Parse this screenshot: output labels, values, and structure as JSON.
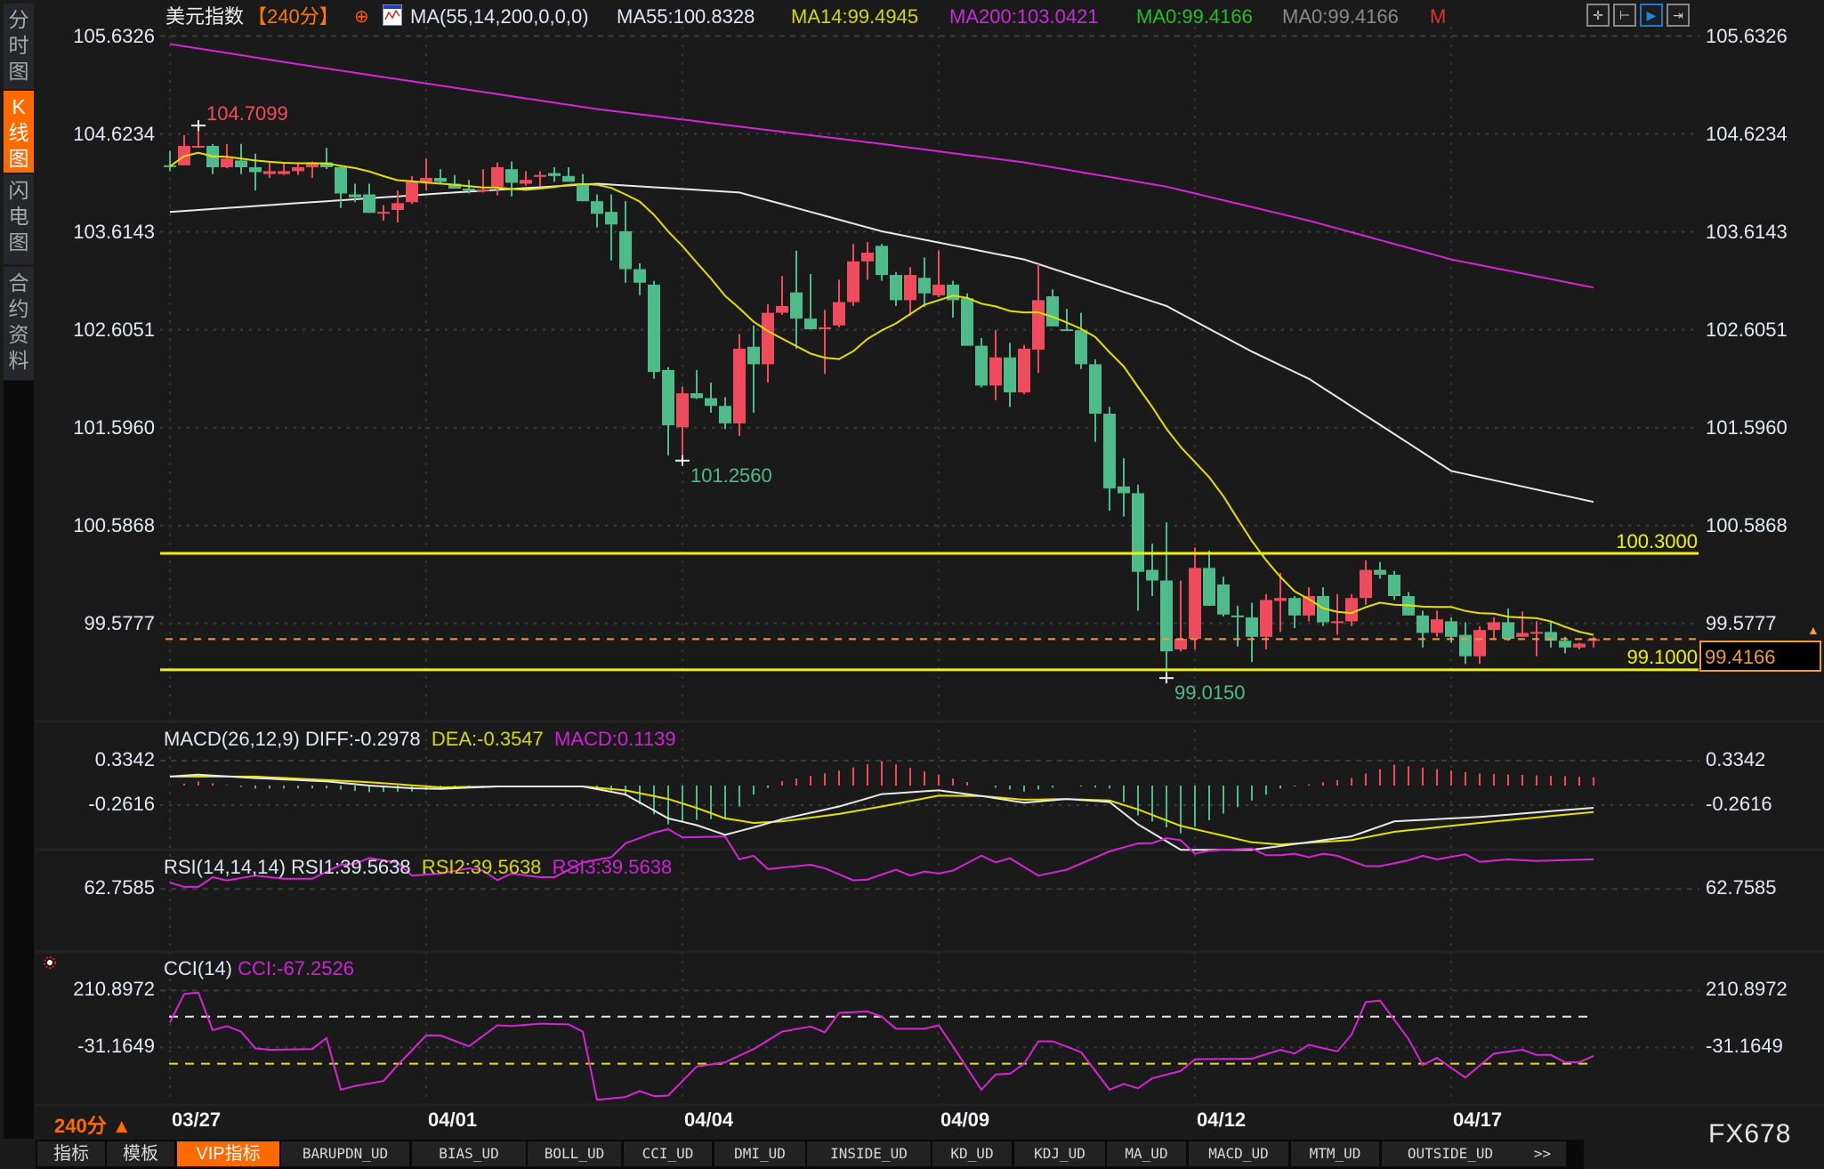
{
  "sidebar": {
    "tabs": [
      {
        "label": "分时图",
        "active": false
      },
      {
        "label": "K线图",
        "active": true
      },
      {
        "label": "闪电图",
        "active": false
      },
      {
        "label": "合约资料",
        "active": false
      }
    ]
  },
  "header": {
    "symbol": "美元指数",
    "period": "【240分】",
    "add_icon": "⊕",
    "ma_params": "MA(55,14,200,0,0,0)",
    "ma55": "MA55:100.8328",
    "ma14": "MA14:99.4945",
    "ma200": "MA200:103.0421",
    "ma0_green": "MA0:99.4166",
    "ma0_gray": "MA0:99.4166",
    "m": "M"
  },
  "toolbar_icons": [
    "crosshair-icon",
    "range-select-icon",
    "play-forward-icon",
    "jump-to-end-icon"
  ],
  "price_axis": {
    "ticks": [
      "105.6326",
      "104.6234",
      "103.6143",
      "102.6051",
      "101.5960",
      "100.5868",
      "99.5777"
    ]
  },
  "annotations": {
    "high": "104.7099",
    "low_1": "101.2560",
    "low_2": "99.0150",
    "resistance": "100.3000",
    "support": "99.1000",
    "last_price": "99.4166"
  },
  "macd": {
    "title": "MACD(26,12,9)",
    "diff": "DIFF:-0.2978",
    "dea": "DEA:-0.3547",
    "macd": "MACD:0.1139",
    "ticks": [
      "0.3342",
      "-0.2616"
    ]
  },
  "rsi": {
    "title": "RSI(14,14,14)",
    "rsi1": "RSI1:39.5638",
    "rsi2": "RSI2:39.5638",
    "rsi3": "RSI3:39.5638",
    "ticks": [
      "62.7585"
    ]
  },
  "cci": {
    "title": "CCI(14)",
    "cci": "CCI:-67.2526",
    "ticks": [
      "210.8972",
      "-31.1649"
    ]
  },
  "x_axis": {
    "period": "240分 ▲",
    "dates": [
      "03/27",
      "04/01",
      "04/04",
      "04/09",
      "04/12",
      "04/17"
    ]
  },
  "tabs": [
    {
      "label": "指标"
    },
    {
      "label": "模板"
    },
    {
      "label": "VIP指标",
      "active": true
    },
    {
      "label": "BARUPDN_UD"
    },
    {
      "label": "BIAS_UD"
    },
    {
      "label": "BOLL_UD"
    },
    {
      "label": "CCI_UD"
    },
    {
      "label": "DMI_UD"
    },
    {
      "label": "INSIDE_UD"
    },
    {
      "label": "KD_UD"
    },
    {
      "label": "KDJ_UD"
    },
    {
      "label": "MA_UD"
    },
    {
      "label": "MACD_UD"
    },
    {
      "label": "MTM_UD"
    },
    {
      "label": "OUTSIDE_UD"
    },
    {
      "label": ">>"
    }
  ],
  "watermark": "FX678",
  "colors": {
    "up": "#ee4c5d",
    "down": "#4fbb8a",
    "ma14": "#e6e000",
    "ma55": "#e8e8e8",
    "ma200": "#d625d6",
    "accent": "#ff6a00",
    "level_line": "#f2f200",
    "last_price": "#f39a3a",
    "background": "#1a1a1a"
  },
  "chart_data": [
    {
      "type": "candlestick",
      "title": "美元指数 240分",
      "x_labels": {
        "0": "03/27",
        "18": "04/01",
        "36": "04/04",
        "54": "04/09",
        "72": "04/12",
        "90": "04/17"
      },
      "ylim": [
        98.8,
        105.8
      ],
      "up_color": "red",
      "down_color": "green",
      "ohlc": [
        [
          104.3,
          104.45,
          104.24,
          104.29
        ],
        [
          104.3,
          104.61,
          104.3,
          104.5
        ],
        [
          104.49,
          104.7099,
          104.48,
          104.5
        ],
        [
          104.5,
          104.52,
          104.21,
          104.28
        ],
        [
          104.28,
          104.52,
          104.27,
          104.37
        ],
        [
          104.35,
          104.52,
          104.21,
          104.28
        ],
        [
          104.28,
          104.42,
          104.04,
          104.23
        ],
        [
          104.21,
          104.33,
          104.17,
          104.24
        ],
        [
          104.21,
          104.33,
          104.2,
          104.24
        ],
        [
          104.24,
          104.33,
          104.2,
          104.28
        ],
        [
          104.28,
          104.34,
          104.17,
          104.33
        ],
        [
          104.33,
          104.48,
          104.26,
          104.28
        ],
        [
          104.28,
          104.3,
          103.86,
          104.01
        ],
        [
          104.0,
          104.11,
          103.92,
          103.97
        ],
        [
          104.0,
          104.11,
          103.81,
          103.81
        ],
        [
          103.81,
          103.89,
          103.73,
          103.82
        ],
        [
          103.84,
          104.04,
          103.71,
          103.91
        ],
        [
          103.92,
          104.19,
          103.9,
          104.14
        ],
        [
          104.13,
          104.37,
          104.04,
          104.17
        ],
        [
          104.17,
          104.26,
          104.12,
          104.13
        ],
        [
          104.11,
          104.2,
          104.06,
          104.06
        ],
        [
          104.06,
          104.15,
          104.01,
          104.04
        ],
        [
          104.03,
          104.26,
          104.02,
          104.05
        ],
        [
          104.08,
          104.33,
          103.99,
          104.28
        ],
        [
          104.26,
          104.34,
          103.98,
          104.12
        ],
        [
          104.11,
          104.24,
          104.09,
          104.15
        ],
        [
          104.19,
          104.24,
          104.08,
          104.2
        ],
        [
          104.22,
          104.28,
          104.13,
          104.19
        ],
        [
          104.19,
          104.28,
          104.13,
          104.13
        ],
        [
          104.11,
          104.21,
          103.93,
          103.93
        ],
        [
          103.93,
          104.0,
          103.66,
          103.8
        ],
        [
          103.82,
          104.0,
          103.32,
          103.69
        ],
        [
          103.62,
          103.93,
          103.09,
          103.23
        ],
        [
          103.23,
          103.29,
          102.96,
          103.09
        ],
        [
          103.07,
          103.11,
          102.1,
          102.17
        ],
        [
          102.19,
          102.22,
          101.31,
          101.62
        ],
        [
          101.6,
          102.02,
          101.256,
          101.95
        ],
        [
          101.95,
          102.19,
          101.89,
          101.9
        ],
        [
          101.9,
          102.06,
          101.75,
          101.82
        ],
        [
          101.82,
          101.91,
          101.58,
          101.64
        ],
        [
          101.64,
          102.56,
          101.51,
          102.41
        ],
        [
          102.43,
          102.65,
          101.75,
          102.25
        ],
        [
          102.25,
          102.87,
          102.06,
          102.78
        ],
        [
          102.78,
          103.16,
          102.76,
          102.85
        ],
        [
          102.99,
          103.42,
          102.41,
          102.72
        ],
        [
          102.72,
          103.18,
          102.61,
          102.61
        ],
        [
          102.62,
          102.81,
          102.15,
          102.63
        ],
        [
          102.65,
          103.12,
          102.63,
          102.89
        ],
        [
          102.89,
          103.49,
          102.85,
          103.31
        ],
        [
          103.31,
          103.51,
          103.12,
          103.4
        ],
        [
          103.47,
          103.49,
          103.11,
          103.17
        ],
        [
          103.17,
          103.2,
          102.85,
          102.91
        ],
        [
          102.91,
          103.25,
          102.75,
          103.17
        ],
        [
          103.14,
          103.35,
          102.84,
          102.98
        ],
        [
          102.96,
          103.42,
          102.94,
          103.07
        ],
        [
          103.07,
          103.11,
          102.73,
          102.91
        ],
        [
          102.93,
          102.98,
          102.44,
          102.44
        ],
        [
          102.44,
          102.52,
          102.01,
          102.03
        ],
        [
          102.03,
          102.6,
          101.88,
          102.32
        ],
        [
          102.32,
          102.47,
          101.81,
          101.96
        ],
        [
          101.96,
          102.45,
          101.94,
          102.41
        ],
        [
          102.4,
          103.28,
          102.16,
          102.91
        ],
        [
          102.95,
          103.02,
          102.64,
          102.64
        ],
        [
          102.61,
          102.82,
          102.6,
          102.6
        ],
        [
          102.6,
          102.78,
          102.2,
          102.25
        ],
        [
          102.25,
          102.3,
          101.45,
          101.74
        ],
        [
          101.74,
          101.81,
          100.74,
          100.97
        ],
        [
          100.99,
          101.28,
          100.68,
          100.92
        ],
        [
          100.92,
          101.01,
          99.71,
          100.11
        ],
        [
          100.13,
          100.4,
          99.86,
          100.02
        ],
        [
          100.02,
          100.62,
          99.015,
          99.29
        ],
        [
          99.31,
          100.02,
          99.29,
          99.42
        ],
        [
          99.42,
          100.36,
          99.31,
          100.15
        ],
        [
          100.15,
          100.33,
          99.76,
          99.76
        ],
        [
          99.98,
          100.06,
          99.65,
          99.67
        ],
        [
          99.66,
          99.76,
          99.34,
          99.65
        ],
        [
          99.64,
          99.79,
          99.18,
          99.44
        ],
        [
          99.44,
          99.88,
          99.31,
          99.82
        ],
        [
          99.81,
          100.1,
          99.49,
          99.84
        ],
        [
          99.84,
          99.86,
          99.53,
          99.66
        ],
        [
          99.66,
          99.95,
          99.6,
          99.86
        ],
        [
          99.86,
          99.95,
          99.55,
          99.59
        ],
        [
          99.59,
          99.88,
          99.46,
          99.6
        ],
        [
          99.6,
          99.88,
          99.55,
          99.84
        ],
        [
          99.84,
          100.23,
          99.77,
          100.13
        ],
        [
          100.13,
          100.21,
          100.04,
          100.08
        ],
        [
          100.08,
          100.12,
          99.82,
          99.86
        ],
        [
          99.86,
          99.9,
          99.66,
          99.66
        ],
        [
          99.66,
          99.71,
          99.33,
          99.48
        ],
        [
          99.48,
          99.71,
          99.44,
          99.62
        ],
        [
          99.6,
          99.64,
          99.38,
          99.44
        ],
        [
          99.46,
          99.59,
          99.16,
          99.24
        ],
        [
          99.24,
          99.55,
          99.16,
          99.51
        ],
        [
          99.51,
          99.64,
          99.42,
          99.59
        ],
        [
          99.59,
          99.73,
          99.4,
          99.42
        ],
        [
          99.44,
          99.7,
          99.44,
          99.48
        ],
        [
          99.48,
          99.6,
          99.24,
          99.49
        ],
        [
          99.49,
          99.59,
          99.33,
          99.4
        ],
        [
          99.4,
          99.44,
          99.27,
          99.33
        ],
        [
          99.33,
          99.38,
          99.31,
          99.37
        ],
        [
          99.4,
          99.44,
          99.33,
          99.4166
        ]
      ],
      "ma55": {
        "index": [
          0,
          10,
          20,
          30,
          40,
          50,
          60,
          70,
          76,
          80,
          90,
          100
        ],
        "values": [
          103.82,
          103.92,
          104.02,
          104.11,
          104.02,
          103.62,
          103.33,
          102.85,
          102.38,
          102.1,
          101.15,
          100.83
        ]
      },
      "ma200": {
        "index": [
          0,
          10,
          20,
          30,
          40,
          50,
          60,
          70,
          80,
          90,
          100
        ],
        "values": [
          105.55,
          105.32,
          105.1,
          104.88,
          104.7,
          104.52,
          104.33,
          104.08,
          103.73,
          103.33,
          103.04
        ]
      },
      "ma14_period": 14,
      "levels": {
        "resistance": 100.3,
        "support": 99.1,
        "last": 99.4166
      }
    },
    {
      "type": "line",
      "title": "MACD(26,12,9)",
      "ylim": [
        -1.0,
        0.45
      ],
      "index": [
        0,
        2,
        6,
        11,
        14,
        17,
        19,
        23,
        29,
        32,
        35,
        37,
        39,
        41,
        43,
        47,
        50,
        54,
        57,
        60,
        63,
        66,
        68,
        71,
        76,
        78,
        83,
        86,
        92,
        100
      ],
      "series": [
        {
          "name": "DIFF",
          "values": [
            0.12,
            0.147,
            0.1,
            0.056,
            0.0,
            -0.036,
            -0.044,
            -0.012,
            -0.012,
            -0.12,
            -0.44,
            -0.53,
            -0.66,
            -0.56,
            -0.45,
            -0.28,
            -0.115,
            -0.064,
            -0.14,
            -0.23,
            -0.18,
            -0.22,
            -0.52,
            -0.86,
            -0.86,
            -0.81,
            -0.68,
            -0.48,
            -0.42,
            -0.2978
          ]
        },
        {
          "name": "DEA",
          "values": [
            0.12,
            0.12,
            0.12,
            0.075,
            0.044,
            0.004,
            -0.024,
            -0.012,
            -0.012,
            -0.064,
            -0.18,
            -0.3,
            -0.44,
            -0.5,
            -0.48,
            -0.38,
            -0.28,
            -0.135,
            -0.14,
            -0.19,
            -0.18,
            -0.2,
            -0.32,
            -0.54,
            -0.76,
            -0.79,
            -0.73,
            -0.62,
            -0.5,
            -0.3547
          ]
        },
        {
          "name": "MACD",
          "formula": "2*(DIFF-DEA)"
        }
      ]
    },
    {
      "type": "line",
      "title": "RSI(14,14,14)",
      "index": [
        0,
        1,
        2,
        3,
        4,
        6,
        8,
        10,
        12,
        13,
        14,
        16,
        17,
        19,
        21,
        22,
        23,
        24,
        26,
        27,
        29,
        31,
        32,
        34,
        35,
        36,
        39,
        40,
        41,
        42,
        45,
        46,
        48,
        49,
        51,
        52,
        53,
        54,
        55,
        57,
        58,
        59,
        61,
        63,
        66,
        68,
        69,
        70,
        71,
        72,
        73,
        76,
        77,
        78,
        79,
        80,
        81,
        82,
        84,
        85,
        87,
        88,
        89,
        91,
        92,
        94,
        96,
        100
      ],
      "series": [
        {
          "name": "RSI1",
          "values": [
            57.7,
            61.1,
            61.1,
            53.5,
            56.0,
            52.3,
            54.7,
            54.7,
            43.8,
            43.1,
            38.5,
            42.2,
            52.3,
            50.7,
            46.6,
            48.4,
            55.8,
            50.7,
            53.5,
            53.5,
            41.9,
            38.0,
            27.1,
            18.8,
            16.0,
            22.5,
            21.8,
            39.6,
            36.8,
            47.2,
            43.8,
            46.6,
            56.0,
            55.3,
            47.7,
            52.3,
            49.1,
            50.7,
            48.4,
            36.8,
            41.9,
            38.7,
            52.3,
            47.7,
            33.4,
            27.1,
            26.9,
            23.0,
            24.6,
            35.2,
            32.9,
            31.1,
            36.4,
            36.4,
            35.2,
            38.0,
            35.2,
            36.8,
            44.9,
            44.9,
            40.3,
            36.8,
            39.6,
            35.7,
            41.5,
            39.6,
            40.8,
            39.5638
          ]
        }
      ]
    },
    {
      "type": "line",
      "title": "CCI(14)",
      "reference_lines": [
        100,
        -100
      ],
      "index": [
        0,
        1,
        2,
        3,
        4,
        5,
        6,
        7,
        10,
        11,
        12,
        13,
        15,
        16,
        18,
        19,
        21,
        23,
        24,
        26,
        28,
        29,
        30,
        32,
        33,
        34,
        35,
        37,
        39,
        41,
        43,
        45,
        46,
        47,
        49,
        50,
        51,
        53,
        54,
        55,
        56,
        57,
        58,
        59,
        60,
        61,
        62,
        64,
        66,
        67,
        68,
        69,
        71,
        72,
        76,
        78,
        79,
        80,
        82,
        83,
        84,
        85,
        87,
        88,
        89,
        91,
        93,
        95,
        96,
        97,
        98,
        99,
        100
      ],
      "series": [
        {
          "name": "CCI",
          "values": [
            75,
            196,
            202,
            42,
            60,
            36,
            -35,
            -41,
            -38,
            9,
            -211,
            -195,
            -174,
            -106,
            20,
            20,
            -26,
            63,
            60,
            70,
            67,
            36,
            -254,
            -242,
            -217,
            -238,
            -236,
            -112,
            -94,
            -38,
            36,
            58,
            33,
            116,
            122,
            100,
            48,
            48,
            63,
            -26,
            -119,
            -211,
            -146,
            -143,
            -100,
            -5,
            -5,
            -51,
            -211,
            -186,
            -205,
            -162,
            -131,
            -81,
            -79,
            -41,
            -57,
            -20,
            -48,
            23,
            162,
            168,
            5,
            -106,
            -75,
            -159,
            -57,
            -41,
            -63,
            -63,
            -94,
            -94,
            -67.2526
          ]
        }
      ]
    }
  ]
}
